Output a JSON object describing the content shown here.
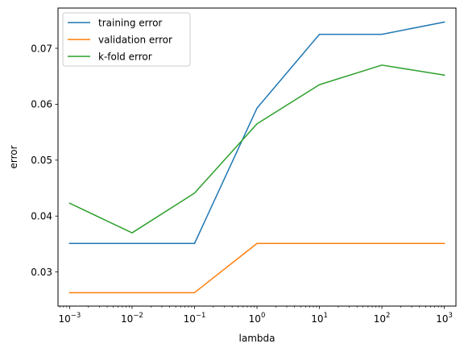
{
  "chart_data": {
    "type": "line",
    "x_scale": "log",
    "x": [
      0.001,
      0.01,
      0.1,
      1,
      10,
      100,
      1000
    ],
    "x_tick_values": [
      0.001,
      0.01,
      0.1,
      1,
      10,
      100,
      1000
    ],
    "x_tick_bases": [
      "10",
      "10",
      "10",
      "10",
      "10",
      "10",
      "10"
    ],
    "x_tick_exponents": [
      "−3",
      "−2",
      "−1",
      "0",
      "1",
      "2",
      "3"
    ],
    "y_tick_values": [
      0.03,
      0.04,
      0.05,
      0.06,
      0.07
    ],
    "y_tick_labels": [
      "0.03",
      "0.04",
      "0.05",
      "0.06",
      "0.07"
    ],
    "xlim": [
      0.000652,
      1533
    ],
    "ylim": [
      0.0239,
      0.0772
    ],
    "xlabel": "lambda",
    "ylabel": "error",
    "legend_position": "top-left",
    "grid": false,
    "series": [
      {
        "name": "training error",
        "color": "#1f77b4",
        "values": [
          0.0351,
          0.0351,
          0.0351,
          0.0593,
          0.0725,
          0.0725,
          0.0747
        ]
      },
      {
        "name": "validation error",
        "color": "#ff7f0e",
        "values": [
          0.0263,
          0.0263,
          0.0263,
          0.0351,
          0.0351,
          0.0351,
          0.0351
        ]
      },
      {
        "name": "k-fold error",
        "color": "#2ca02c",
        "values": [
          0.0423,
          0.037,
          0.0441,
          0.0565,
          0.0635,
          0.067,
          0.0652
        ]
      }
    ]
  }
}
